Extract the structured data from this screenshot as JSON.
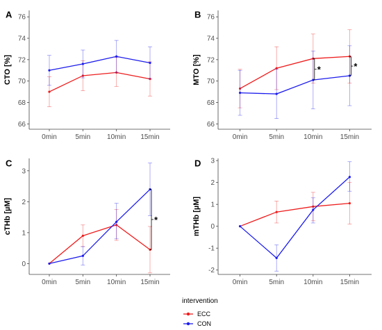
{
  "chart_data": [
    {
      "panel": "A",
      "type": "line",
      "categories": [
        "0min",
        "5min",
        "10min",
        "15min"
      ],
      "ylabel": "CTO [%]",
      "ylim": [
        65.5,
        76.6
      ],
      "yticks": [
        66,
        68,
        70,
        72,
        74,
        76
      ],
      "series": [
        {
          "name": "ECC",
          "values": [
            69.0,
            70.5,
            70.8,
            70.2
          ],
          "err_low": [
            67.6,
            69.1,
            69.5,
            68.6
          ],
          "err_high": [
            70.4,
            71.9,
            72.2,
            71.8
          ]
        },
        {
          "name": "CON",
          "values": [
            71.0,
            71.6,
            72.3,
            71.7
          ],
          "err_low": [
            69.6,
            70.3,
            70.8,
            70.2
          ],
          "err_high": [
            72.4,
            72.9,
            73.8,
            73.2
          ]
        }
      ],
      "significance": []
    },
    {
      "panel": "B",
      "type": "line",
      "categories": [
        "0min",
        "5min",
        "10min",
        "15min"
      ],
      "ylabel": "MTO [%]",
      "ylim": [
        65.5,
        76.6
      ],
      "yticks": [
        66,
        68,
        70,
        72,
        74,
        76
      ],
      "series": [
        {
          "name": "ECC",
          "values": [
            69.3,
            71.2,
            72.1,
            72.3
          ],
          "err_low": [
            67.5,
            69.2,
            69.8,
            69.8
          ],
          "err_high": [
            71.1,
            73.2,
            74.4,
            74.8
          ]
        },
        {
          "name": "CON",
          "values": [
            68.9,
            68.8,
            70.1,
            70.5
          ],
          "err_low": [
            66.8,
            66.5,
            67.4,
            67.7
          ],
          "err_high": [
            71.0,
            71.1,
            72.8,
            73.3
          ]
        }
      ],
      "significance": [
        {
          "category": "10min",
          "label": "*"
        },
        {
          "category": "15min",
          "label": "*"
        }
      ]
    },
    {
      "panel": "C",
      "type": "line",
      "categories": [
        "0min",
        "5min",
        "10min",
        "15min"
      ],
      "ylabel": "cTHb [µM]",
      "ylim": [
        -0.35,
        3.4
      ],
      "yticks": [
        0,
        1,
        2,
        3
      ],
      "series": [
        {
          "name": "ECC",
          "values": [
            0.0,
            0.9,
            1.25,
            0.45
          ],
          "err_low": [
            0.0,
            0.55,
            0.75,
            -0.3
          ],
          "err_high": [
            0.0,
            1.25,
            1.75,
            1.2
          ]
        },
        {
          "name": "CON",
          "values": [
            0.0,
            0.25,
            1.35,
            2.4
          ],
          "err_low": [
            0.0,
            -0.05,
            0.8,
            1.55
          ],
          "err_high": [
            0.0,
            0.55,
            1.95,
            3.25
          ]
        }
      ],
      "significance": [
        {
          "category": "15min",
          "label": "*"
        }
      ]
    },
    {
      "panel": "D",
      "type": "line",
      "categories": [
        "0min",
        "5min",
        "10min",
        "15min"
      ],
      "ylabel": "mTHb [µM]",
      "ylim": [
        -2.2,
        3.1
      ],
      "yticks": [
        -2,
        -1,
        0,
        1,
        2,
        3
      ],
      "series": [
        {
          "name": "ECC",
          "values": [
            0.0,
            0.65,
            0.9,
            1.05
          ],
          "err_low": [
            0.0,
            0.15,
            0.25,
            0.1
          ],
          "err_high": [
            0.0,
            1.15,
            1.55,
            2.0
          ]
        },
        {
          "name": "CON",
          "values": [
            0.0,
            -1.45,
            0.75,
            2.25
          ],
          "err_low": [
            0.0,
            -2.05,
            0.15,
            1.6
          ],
          "err_high": [
            0.0,
            -0.85,
            1.3,
            2.95
          ]
        }
      ],
      "significance": []
    }
  ],
  "legend": {
    "title": "intervention",
    "items": [
      {
        "label": "ECC",
        "color": "#ee1c1c"
      },
      {
        "label": "CON",
        "color": "#1c1cee"
      }
    ]
  },
  "colors": {
    "ECC": "#ee1c1c",
    "CON": "#1c1cee",
    "axis": "#444444"
  }
}
